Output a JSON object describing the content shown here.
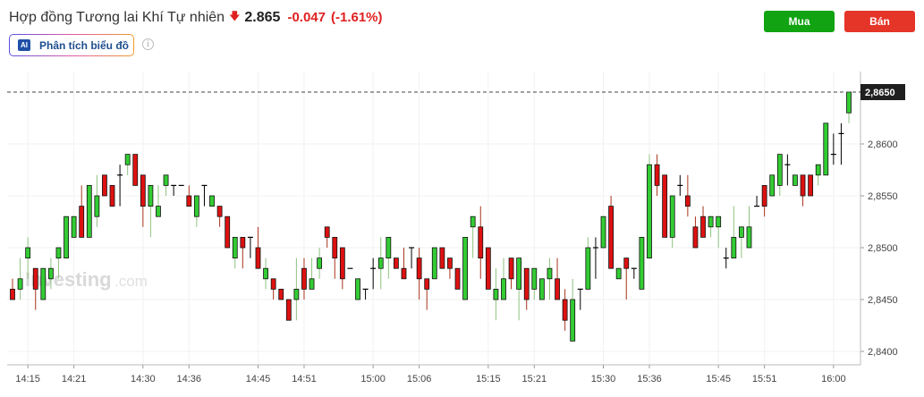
{
  "header": {
    "title": "Hợp đồng Tương lai Khí Tự nhiên",
    "direction_icon": "arrow-down-icon",
    "price": "2.865",
    "change": "-0.047",
    "change_pct": "(-1.61%)",
    "buy_label": "Mua",
    "sell_label": "Bán",
    "ai_badge": "AI",
    "ai_label": "Phân tích biểu đồ",
    "info_icon": "info-icon"
  },
  "colors": {
    "up": "#33cc33",
    "down": "#dd1111",
    "up_wick": "#8fc27f",
    "down_wick": "#a8331c",
    "buy": "#11a311",
    "sell": "#e53528",
    "down_text": "#e02020"
  },
  "watermark": {
    "brand": "Investing",
    "suffix": ".com"
  },
  "chart_data": {
    "type": "candlestick",
    "title": "",
    "start_time": "14:13",
    "interval_minutes": 1,
    "current_price_label": "2,8650",
    "ylim": [
      2.8385,
      2.8675
    ],
    "y_ticks": [
      "2,8400",
      "2,8450",
      "2,8500",
      "2,8550",
      "2,8600"
    ],
    "y_tick_values": [
      2.84,
      2.845,
      2.85,
      2.855,
      2.86
    ],
    "x_ticks": [
      "14:15",
      "14:21",
      "14:30",
      "14:36",
      "14:45",
      "14:51",
      "15:00",
      "15:06",
      "15:15",
      "15:21",
      "15:30",
      "15:36",
      "15:45",
      "15:51",
      "16:00"
    ],
    "grid": true,
    "ohlc": [
      [
        2.846,
        2.847,
        2.845,
        2.845
      ],
      [
        2.846,
        2.849,
        2.845,
        2.847
      ],
      [
        2.849,
        2.851,
        2.847,
        2.85
      ],
      [
        2.848,
        2.848,
        2.844,
        2.846
      ],
      [
        2.845,
        2.848,
        2.845,
        2.848
      ],
      [
        2.847,
        2.849,
        2.846,
        2.848
      ],
      [
        2.849,
        2.85,
        2.847,
        2.85
      ],
      [
        2.849,
        2.853,
        2.849,
        2.853
      ],
      [
        2.851,
        2.853,
        2.851,
        2.853
      ],
      [
        2.854,
        2.856,
        2.851,
        2.851
      ],
      [
        2.851,
        2.856,
        2.851,
        2.856
      ],
      [
        2.853,
        2.857,
        2.852,
        2.855
      ],
      [
        2.857,
        2.857,
        2.855,
        2.855
      ],
      [
        2.856,
        2.856,
        2.854,
        2.854
      ],
      [
        2.857,
        2.858,
        2.854,
        2.857
      ],
      [
        2.858,
        2.859,
        2.857,
        2.859
      ],
      [
        2.859,
        2.859,
        2.856,
        2.856
      ],
      [
        2.857,
        2.857,
        2.852,
        2.854
      ],
      [
        2.854,
        2.856,
        2.851,
        2.856
      ],
      [
        2.853,
        2.856,
        2.853,
        2.854
      ],
      [
        2.856,
        2.857,
        2.855,
        2.857
      ],
      [
        2.856,
        2.856,
        2.855,
        2.856
      ],
      [
        2.856,
        2.856,
        2.856,
        2.856
      ],
      [
        2.855,
        2.856,
        2.854,
        2.854
      ],
      [
        2.853,
        2.855,
        2.852,
        2.855
      ],
      [
        2.856,
        2.856,
        2.854,
        2.856
      ],
      [
        2.854,
        2.855,
        2.854,
        2.855
      ],
      [
        2.854,
        2.854,
        2.852,
        2.853
      ],
      [
        2.853,
        2.853,
        2.85,
        2.85
      ],
      [
        2.849,
        2.851,
        2.848,
        2.851
      ],
      [
        2.851,
        2.851,
        2.848,
        2.85
      ],
      [
        2.851,
        2.851,
        2.849,
        2.851
      ],
      [
        2.85,
        2.852,
        2.848,
        2.848
      ],
      [
        2.847,
        2.849,
        2.846,
        2.848
      ],
      [
        2.847,
        2.847,
        2.845,
        2.846
      ],
      [
        2.846,
        2.846,
        2.845,
        2.845
      ],
      [
        2.845,
        2.845,
        2.843,
        2.843
      ],
      [
        2.845,
        2.849,
        2.843,
        2.846
      ],
      [
        2.848,
        2.849,
        2.845,
        2.846
      ],
      [
        2.846,
        2.849,
        2.846,
        2.847
      ],
      [
        2.848,
        2.85,
        2.847,
        2.849
      ],
      [
        2.852,
        2.852,
        2.85,
        2.851
      ],
      [
        2.851,
        2.851,
        2.847,
        2.849
      ],
      [
        2.85,
        2.85,
        2.846,
        2.847
      ],
      [
        2.848,
        2.848,
        2.848,
        2.848
      ],
      [
        2.845,
        2.847,
        2.845,
        2.847
      ],
      [
        2.846,
        2.846,
        2.845,
        2.846
      ],
      [
        2.848,
        2.849,
        2.846,
        2.848
      ],
      [
        2.848,
        2.851,
        2.846,
        2.849
      ],
      [
        2.849,
        2.851,
        2.847,
        2.851
      ],
      [
        2.849,
        2.849,
        2.848,
        2.848
      ],
      [
        2.848,
        2.85,
        2.847,
        2.847
      ],
      [
        2.85,
        2.85,
        2.848,
        2.85
      ],
      [
        2.849,
        2.85,
        2.845,
        2.847
      ],
      [
        2.847,
        2.847,
        2.844,
        2.846
      ],
      [
        2.847,
        2.85,
        2.847,
        2.85
      ],
      [
        2.85,
        2.85,
        2.848,
        2.848
      ],
      [
        2.849,
        2.849,
        2.847,
        2.848
      ],
      [
        2.848,
        2.848,
        2.846,
        2.846
      ],
      [
        2.845,
        2.851,
        2.845,
        2.851
      ],
      [
        2.852,
        2.853,
        2.849,
        2.853
      ],
      [
        2.852,
        2.854,
        2.847,
        2.849
      ],
      [
        2.85,
        2.85,
        2.846,
        2.846
      ],
      [
        2.845,
        2.848,
        2.843,
        2.846
      ],
      [
        2.845,
        2.849,
        2.845,
        2.847
      ],
      [
        2.849,
        2.849,
        2.846,
        2.847
      ],
      [
        2.846,
        2.849,
        2.843,
        2.849
      ],
      [
        2.848,
        2.848,
        2.844,
        2.845
      ],
      [
        2.846,
        2.848,
        2.845,
        2.848
      ],
      [
        2.845,
        2.847,
        2.845,
        2.847
      ],
      [
        2.847,
        2.849,
        2.845,
        2.848
      ],
      [
        2.847,
        2.849,
        2.845,
        2.845
      ],
      [
        2.845,
        2.846,
        2.842,
        2.843
      ],
      [
        2.841,
        2.847,
        2.841,
        2.845
      ],
      [
        2.846,
        2.846,
        2.844,
        2.846
      ],
      [
        2.846,
        2.851,
        2.846,
        2.85
      ],
      [
        2.85,
        2.851,
        2.847,
        2.85
      ],
      [
        2.85,
        2.853,
        2.85,
        2.853
      ],
      [
        2.854,
        2.855,
        2.848,
        2.848
      ],
      [
        2.847,
        2.848,
        2.847,
        2.848
      ],
      [
        2.849,
        2.849,
        2.845,
        2.848
      ],
      [
        2.848,
        2.848,
        2.847,
        2.848
      ],
      [
        2.846,
        2.851,
        2.846,
        2.851
      ],
      [
        2.849,
        2.859,
        2.849,
        2.858
      ],
      [
        2.858,
        2.859,
        2.855,
        2.856
      ],
      [
        2.857,
        2.857,
        2.851,
        2.851
      ],
      [
        2.851,
        2.855,
        2.85,
        2.855
      ],
      [
        2.856,
        2.857,
        2.855,
        2.856
      ],
      [
        2.855,
        2.857,
        2.853,
        2.854
      ],
      [
        2.852,
        2.853,
        2.85,
        2.85
      ],
      [
        2.853,
        2.854,
        2.851,
        2.851
      ],
      [
        2.852,
        2.853,
        2.851,
        2.853
      ],
      [
        2.852,
        2.853,
        2.85,
        2.853
      ],
      [
        2.849,
        2.85,
        2.848,
        2.849
      ],
      [
        2.849,
        2.854,
        2.849,
        2.851
      ],
      [
        2.851,
        2.852,
        2.849,
        2.852
      ],
      [
        2.85,
        2.854,
        2.85,
        2.852
      ],
      [
        2.854,
        2.855,
        2.854,
        2.854
      ],
      [
        2.856,
        2.856,
        2.853,
        2.854
      ],
      [
        2.855,
        2.857,
        2.855,
        2.857
      ],
      [
        2.856,
        2.859,
        2.855,
        2.859
      ],
      [
        2.858,
        2.859,
        2.856,
        2.858
      ],
      [
        2.856,
        2.857,
        2.856,
        2.857
      ],
      [
        2.857,
        2.857,
        2.854,
        2.855
      ],
      [
        2.857,
        2.857,
        2.855,
        2.855
      ],
      [
        2.857,
        2.858,
        2.856,
        2.858
      ],
      [
        2.857,
        2.862,
        2.857,
        2.862
      ],
      [
        2.859,
        2.861,
        2.858,
        2.859
      ],
      [
        2.861,
        2.862,
        2.858,
        2.861
      ],
      [
        2.863,
        2.865,
        2.862,
        2.865
      ]
    ]
  }
}
